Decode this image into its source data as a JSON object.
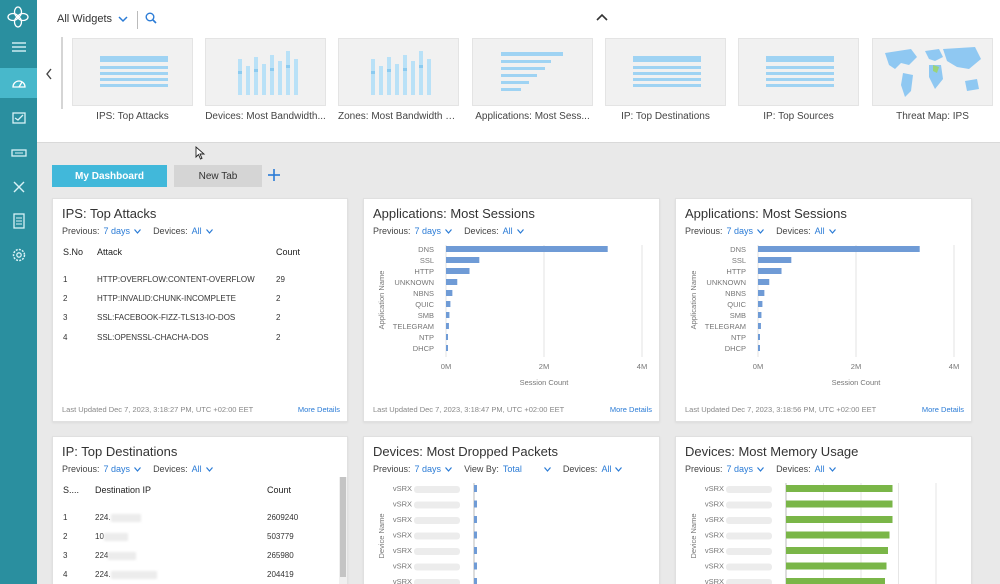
{
  "tray": {
    "filter_label": "All Widgets",
    "widgets": [
      {
        "label": "IPS: Top Attacks",
        "icon": "list-chart-icon"
      },
      {
        "label": "Devices: Most Bandwidth...",
        "icon": "bar-chart-icon"
      },
      {
        "label": "Zones: Most Bandwidth B...",
        "icon": "bar-chart-icon"
      },
      {
        "label": "Applications: Most Sess...",
        "icon": "hbar-chart-icon"
      },
      {
        "label": "IP: Top Destinations",
        "icon": "list-chart-icon"
      },
      {
        "label": "IP: Top Sources",
        "icon": "list-chart-icon"
      },
      {
        "label": "Threat Map: IPS",
        "icon": "world-map-icon"
      }
    ]
  },
  "tabs": {
    "active": "My Dashboard",
    "second": "New Tab"
  },
  "filters": {
    "previous": "Previous:",
    "days": "7 days",
    "devices": "Devices:",
    "all": "All",
    "view_by": "View By:",
    "total": "Total",
    "more": "More Details"
  },
  "ips": {
    "title": "IPS: Top Attacks",
    "headers": [
      "S.No",
      "Attack",
      "Count"
    ],
    "rows": [
      [
        "1",
        "HTTP:OVERFLOW:CONTENT-OVERFLOW",
        "29"
      ],
      [
        "2",
        "HTTP:INVALID:CHUNK-INCOMPLETE",
        "2"
      ],
      [
        "3",
        "SSL:FACEBOOK-FIZZ-TLS13-IO-DOS",
        "2"
      ],
      [
        "4",
        "SSL:OPENSSL-CHACHA-DOS",
        "2"
      ]
    ],
    "updated": "Last Updated Dec 7, 2023, 3:18:27 PM, UTC +02:00 EET"
  },
  "apps1": {
    "title": "Applications: Most Sessions",
    "updated": "Last Updated Dec 7, 2023, 3:18:47 PM, UTC +02:00 EET"
  },
  "apps2": {
    "title": "Applications: Most Sessions",
    "updated": "Last Updated Dec 7, 2023, 3:18:56 PM, UTC +02:00 EET"
  },
  "chart_data": [
    {
      "type": "bar",
      "orientation": "horizontal",
      "ylabel": "Application Name",
      "xlabel": "Session Count",
      "categories": [
        "DNS",
        "SSL",
        "HTTP",
        "UNKNOWN",
        "NBNS",
        "QUIC",
        "SMB",
        "TELEGRAM",
        "NTP",
        "DHCP"
      ],
      "values": [
        3300000,
        680000,
        480000,
        230000,
        130000,
        90000,
        70000,
        60000,
        40000,
        30000
      ],
      "xticks": [
        "0M",
        "2M",
        "4M"
      ],
      "xlim": [
        0,
        4000000
      ],
      "color": "#6f9bd6"
    },
    {
      "type": "bar",
      "orientation": "horizontal",
      "ylabel": "Application Name",
      "xlabel": "Session Count",
      "categories": [
        "DNS",
        "SSL",
        "HTTP",
        "UNKNOWN",
        "NBNS",
        "QUIC",
        "SMB",
        "TELEGRAM",
        "NTP",
        "DHCP"
      ],
      "values": [
        3300000,
        680000,
        480000,
        230000,
        130000,
        90000,
        70000,
        60000,
        40000,
        30000
      ],
      "xticks": [
        "0M",
        "2M",
        "4M"
      ],
      "xlim": [
        0,
        4000000
      ],
      "color": "#6f9bd6"
    },
    {
      "type": "bar",
      "orientation": "horizontal",
      "ylabel": "Device Name",
      "categories": [
        "vSRX",
        "vSRX",
        "vSRX",
        "vSRX",
        "vSRX",
        "vSRX",
        "vSRX"
      ],
      "color": "#6f9bd6"
    },
    {
      "type": "bar",
      "orientation": "horizontal",
      "ylabel": "Device Name",
      "categories": [
        "vSRX",
        "vSRX",
        "vSRX",
        "vSRX",
        "vSRX",
        "vSRX",
        "vSRX"
      ],
      "values": [
        0.71,
        0.71,
        0.71,
        0.69,
        0.68,
        0.67,
        0.66
      ],
      "color": "#7ab648"
    }
  ],
  "dest": {
    "title": "IP: Top Destinations",
    "headers": [
      "S....",
      "Destination IP",
      "Count"
    ],
    "rows": [
      [
        "1",
        "224.",
        "2609240"
      ],
      [
        "2",
        "10",
        "503779"
      ],
      [
        "3",
        "224",
        "265980"
      ],
      [
        "4",
        "224.",
        "204419"
      ]
    ]
  },
  "dropped": {
    "title": "Devices: Most Dropped Packets"
  },
  "memory": {
    "title": "Devices: Most Memory Usage"
  }
}
